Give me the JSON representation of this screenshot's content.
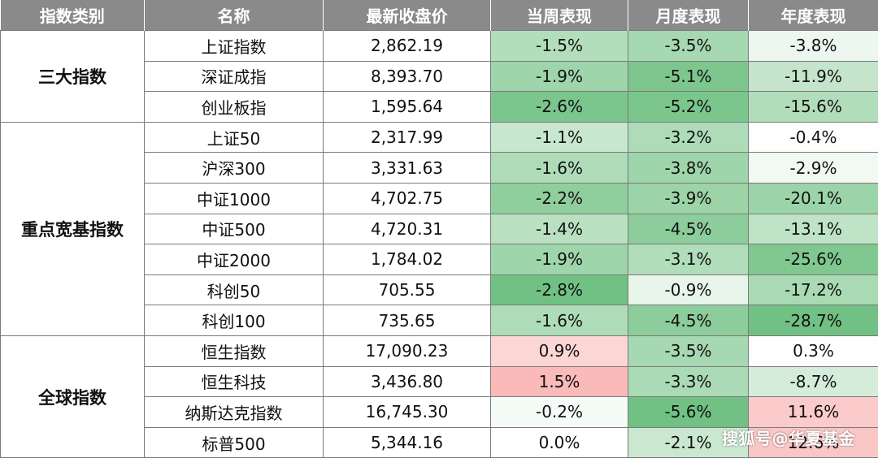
{
  "headers": [
    "指数类别",
    "名称",
    "最新收盘价",
    "当周表现",
    "月度表现",
    "年度表现"
  ],
  "groups": [
    {
      "category": "三大指数",
      "rows": [
        {
          "name": "上证指数",
          "close": "2,862.19",
          "week": "-1.5%",
          "month": "-3.5%",
          "year": "-3.8%"
        },
        {
          "name": "深证成指",
          "close": "8,393.70",
          "week": "-1.9%",
          "month": "-5.1%",
          "year": "-11.9%"
        },
        {
          "name": "创业板指",
          "close": "1,595.64",
          "week": "-2.6%",
          "month": "-5.2%",
          "year": "-15.6%"
        }
      ]
    },
    {
      "category": "重点宽基指数",
      "rows": [
        {
          "name": "上证50",
          "close": "2,317.99",
          "week": "-1.1%",
          "month": "-3.2%",
          "year": "-0.4%"
        },
        {
          "name": "沪深300",
          "close": "3,331.63",
          "week": "-1.6%",
          "month": "-3.8%",
          "year": "-2.9%"
        },
        {
          "name": "中证1000",
          "close": "4,702.75",
          "week": "-2.2%",
          "month": "-3.9%",
          "year": "-20.1%"
        },
        {
          "name": "中证500",
          "close": "4,720.31",
          "week": "-1.4%",
          "month": "-4.5%",
          "year": "-13.1%"
        },
        {
          "name": "中证2000",
          "close": "1,784.02",
          "week": "-1.9%",
          "month": "-3.1%",
          "year": "-25.6%"
        },
        {
          "name": "科创50",
          "close": "705.55",
          "week": "-2.8%",
          "month": "-0.9%",
          "year": "-17.2%"
        },
        {
          "name": "科创100",
          "close": "735.65",
          "week": "-1.6%",
          "month": "-4.5%",
          "year": "-28.7%"
        }
      ]
    },
    {
      "category": "全球指数",
      "rows": [
        {
          "name": "恒生指数",
          "close": "17,090.23",
          "week": "0.9%",
          "month": "-3.5%",
          "year": "0.3%"
        },
        {
          "name": "恒生科技",
          "close": "3,436.80",
          "week": "1.5%",
          "month": "-3.3%",
          "year": "-8.7%"
        },
        {
          "name": "纳斯达克指数",
          "close": "16,745.30",
          "week": "-0.2%",
          "month": "-5.6%",
          "year": "11.6%"
        },
        {
          "name": "标普500",
          "close": "5,344.16",
          "week": "0.0%",
          "month": "-2.1%",
          "year": "12.6%"
        }
      ]
    }
  ],
  "colors": {
    "header_bg": "#8a8a8a",
    "positive_max": "#f56a6a",
    "negative_max": "#5bb870"
  },
  "watermark": "搜狐号@华夏基金"
}
